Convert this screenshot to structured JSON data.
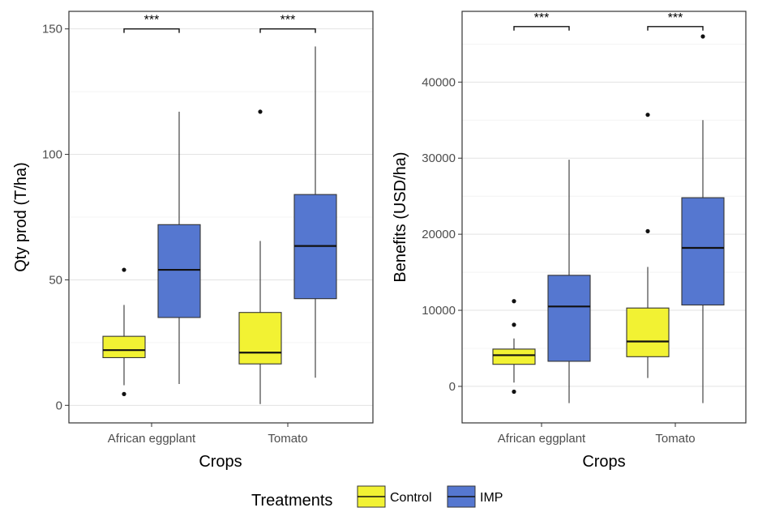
{
  "legend": {
    "title": "Treatments",
    "items": [
      {
        "label": "Control",
        "color": "#f2f233"
      },
      {
        "label": "IMP",
        "color": "#5577d0"
      }
    ]
  },
  "chart_data": [
    {
      "type": "boxplot",
      "xlabel": "Crops",
      "ylabel": "Qty prod (T/ha)",
      "ylim": [
        -7,
        157
      ],
      "yticks": [
        0,
        50,
        100,
        150
      ],
      "categories": [
        "African eggplant",
        "Tomato"
      ],
      "series": [
        {
          "name": "Control",
          "color": "#f2f233",
          "boxes": [
            {
              "min": 8,
              "q1": 19,
              "median": 22,
              "q3": 27.5,
              "max": 40,
              "outliers": [
                4.5,
                54
              ]
            },
            {
              "min": 0.5,
              "q1": 16.5,
              "median": 21,
              "q3": 37,
              "max": 65.5,
              "outliers": [
                117
              ]
            }
          ]
        },
        {
          "name": "IMP",
          "color": "#5577d0",
          "boxes": [
            {
              "min": 8.5,
              "q1": 35,
              "median": 54,
              "q3": 72,
              "max": 117,
              "outliers": []
            },
            {
              "min": 11,
              "q1": 42.5,
              "median": 63.5,
              "q3": 84,
              "max": 143,
              "outliers": []
            }
          ]
        }
      ],
      "significance": [
        {
          "category": "African eggplant",
          "label": "***",
          "y": 150
        },
        {
          "category": "Tomato",
          "label": "***",
          "y": 150
        }
      ]
    },
    {
      "type": "boxplot",
      "xlabel": "Crops",
      "ylabel": "Benefits (USD/ha)",
      "ylim": [
        -4800,
        49300
      ],
      "yticks": [
        0,
        10000,
        20000,
        30000,
        40000
      ],
      "categories": [
        "African eggplant",
        "Tomato"
      ],
      "series": [
        {
          "name": "Control",
          "color": "#f2f233",
          "boxes": [
            {
              "min": 500,
              "q1": 2900,
              "median": 4100,
              "q3": 4900,
              "max": 6300,
              "outliers": [
                -700,
                8100,
                11200
              ]
            },
            {
              "min": 1100,
              "q1": 3900,
              "median": 5900,
              "q3": 10300,
              "max": 15700,
              "outliers": [
                20400,
                35700
              ]
            }
          ]
        },
        {
          "name": "IMP",
          "color": "#5577d0",
          "boxes": [
            {
              "min": -2200,
              "q1": 3300,
              "median": 10500,
              "q3": 14600,
              "max": 29800,
              "outliers": []
            },
            {
              "min": -2200,
              "q1": 10700,
              "median": 18200,
              "q3": 24800,
              "max": 35000,
              "outliers": [
                46000
              ]
            }
          ]
        }
      ],
      "significance": [
        {
          "category": "African eggplant",
          "label": "***",
          "y": 47300
        },
        {
          "category": "Tomato",
          "label": "***",
          "y": 47300
        }
      ]
    }
  ]
}
